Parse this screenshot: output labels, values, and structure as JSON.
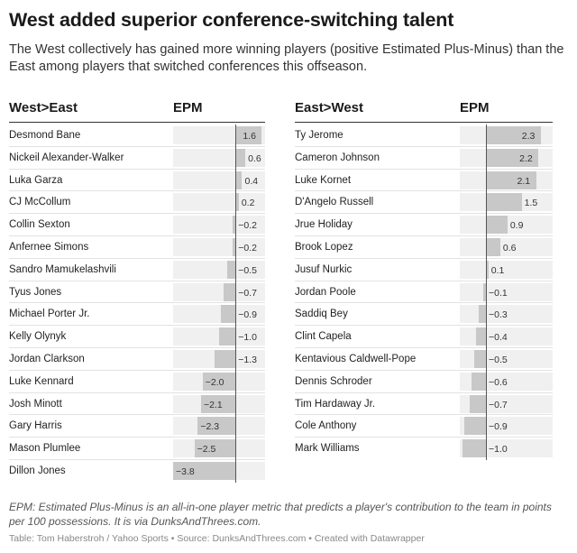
{
  "title": "West added superior conference-switching talent",
  "subtitle": "The West collectively has gained more winning players (positive Estimated Plus-Minus) than the East among players that switched conferences this offseason.",
  "columns": {
    "west_header": "West>East",
    "east_header": "East>West",
    "metric_header": "EPM"
  },
  "chart_data": {
    "type": "table",
    "metric": "EPM",
    "tables": [
      {
        "name": "West>East",
        "rows": [
          {
            "player": "Desmond Bane",
            "epm": 1.6,
            "label": "1.6"
          },
          {
            "player": "Nickeil Alexander-Walker",
            "epm": 0.6,
            "label": "0.6"
          },
          {
            "player": "Luka Garza",
            "epm": 0.4,
            "label": "0.4"
          },
          {
            "player": "CJ McCollum",
            "epm": 0.2,
            "label": "0.2"
          },
          {
            "player": "Collin Sexton",
            "epm": -0.2,
            "label": "−0.2"
          },
          {
            "player": "Anfernee Simons",
            "epm": -0.2,
            "label": "−0.2"
          },
          {
            "player": "Sandro Mamukelashvili",
            "epm": -0.5,
            "label": "−0.5"
          },
          {
            "player": "Tyus Jones",
            "epm": -0.7,
            "label": "−0.7"
          },
          {
            "player": "Michael Porter Jr.",
            "epm": -0.9,
            "label": "−0.9"
          },
          {
            "player": "Kelly Olynyk",
            "epm": -1.0,
            "label": "−1.0"
          },
          {
            "player": "Jordan Clarkson",
            "epm": -1.3,
            "label": "−1.3"
          },
          {
            "player": "Luke Kennard",
            "epm": -2.0,
            "label": "−2.0"
          },
          {
            "player": "Josh Minott",
            "epm": -2.1,
            "label": "−2.1"
          },
          {
            "player": "Gary Harris",
            "epm": -2.3,
            "label": "−2.3"
          },
          {
            "player": "Mason Plumlee",
            "epm": -2.5,
            "label": "−2.5"
          },
          {
            "player": "Dillon Jones",
            "epm": -3.8,
            "label": "−3.8"
          }
        ]
      },
      {
        "name": "East>West",
        "rows": [
          {
            "player": "Ty Jerome",
            "epm": 2.3,
            "label": "2.3"
          },
          {
            "player": "Cameron Johnson",
            "epm": 2.2,
            "label": "2.2"
          },
          {
            "player": "Luke Kornet",
            "epm": 2.1,
            "label": "2.1"
          },
          {
            "player": "D'Angelo Russell",
            "epm": 1.5,
            "label": "1.5"
          },
          {
            "player": "Jrue Holiday",
            "epm": 0.9,
            "label": "0.9"
          },
          {
            "player": "Brook Lopez",
            "epm": 0.6,
            "label": "0.6"
          },
          {
            "player": "Jusuf Nurkic",
            "epm": 0.1,
            "label": "0.1"
          },
          {
            "player": "Jordan Poole",
            "epm": -0.1,
            "label": "−0.1"
          },
          {
            "player": "Saddiq Bey",
            "epm": -0.3,
            "label": "−0.3"
          },
          {
            "player": "Clint Capela",
            "epm": -0.4,
            "label": "−0.4"
          },
          {
            "player": "Kentavious Caldwell-Pope",
            "epm": -0.5,
            "label": "−0.5"
          },
          {
            "player": "Dennis Schroder",
            "epm": -0.6,
            "label": "−0.6"
          },
          {
            "player": "Tim Hardaway Jr.",
            "epm": -0.7,
            "label": "−0.7"
          },
          {
            "player": "Cole Anthony",
            "epm": -0.9,
            "label": "−0.9"
          },
          {
            "player": "Mark Williams",
            "epm": -1.0,
            "label": "−1.0"
          }
        ]
      }
    ],
    "colors": {
      "bar": "#c8c8c8",
      "track": "#f0f0f0",
      "zero_line": "#555555"
    }
  },
  "note": "EPM: Estimated Plus-Minus is an all-in-one player metric that predicts a player's contribution to the team in points per 100 possessions. It is via DunksAndThrees.com.",
  "footer": "Table: Tom Haberstroh / Yahoo Sports • Source: DunksAndThrees.com • Created with Datawrapper"
}
